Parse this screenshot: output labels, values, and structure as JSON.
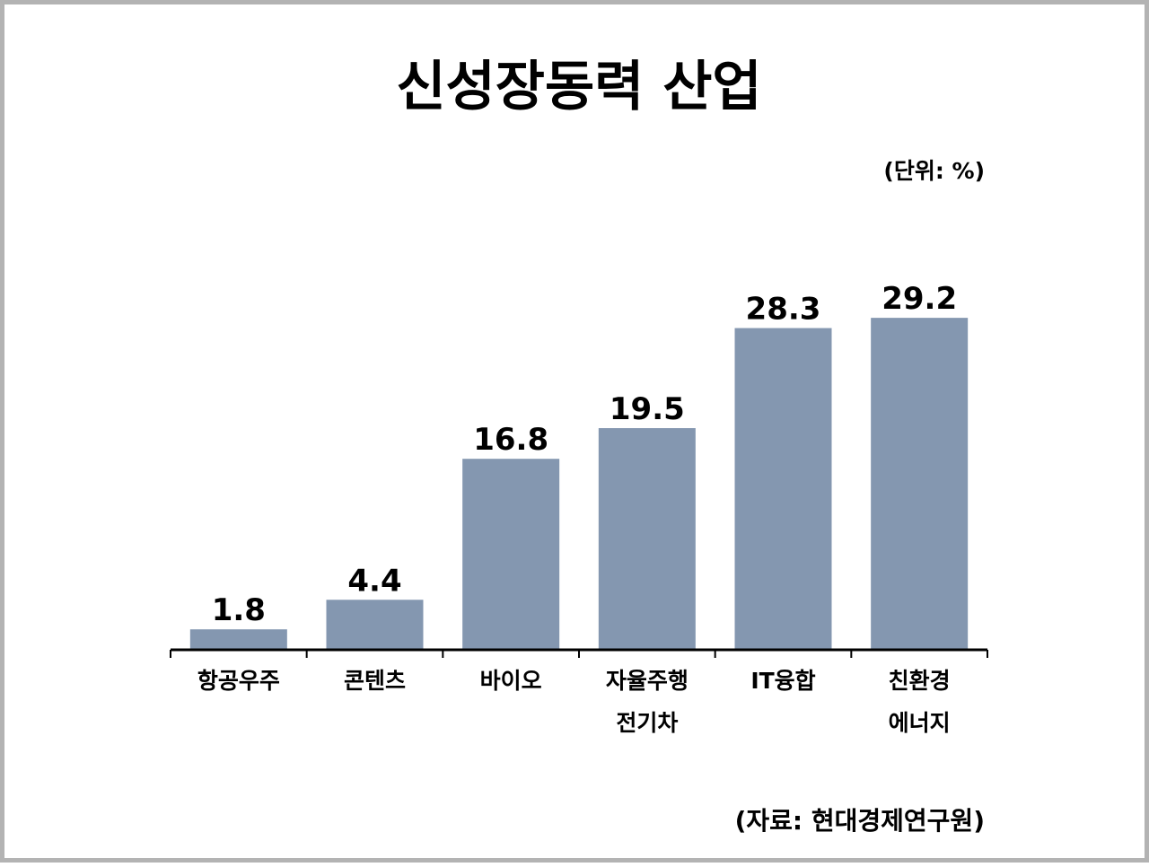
{
  "chart_data": {
    "type": "bar",
    "title": "신성장동력 산업",
    "unit_label": "(단위: %)",
    "source_label": "(자료: 현대경제연구원)",
    "categories": [
      [
        "항공우주"
      ],
      [
        "콘텐츠"
      ],
      [
        "바이오"
      ],
      [
        "자율주행",
        "전기차"
      ],
      [
        "IT융합"
      ],
      [
        "친환경",
        "에너지"
      ]
    ],
    "values": [
      1.8,
      4.4,
      16.8,
      19.5,
      28.3,
      29.2
    ],
    "value_labels": [
      "1.8",
      "4.4",
      "16.8",
      "19.5",
      "28.3",
      "29.2"
    ],
    "ylim": [
      0,
      30
    ],
    "bar_color": "#8497b0",
    "grid": false,
    "legend": "none"
  }
}
